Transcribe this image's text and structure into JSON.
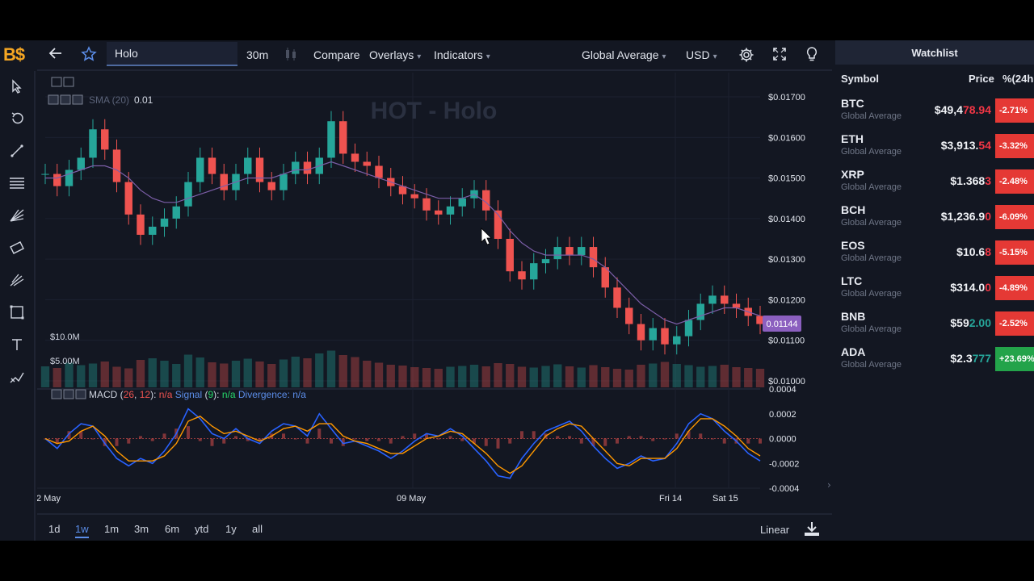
{
  "app": {
    "logo": "B$"
  },
  "topbar": {
    "symbol_value": "Holo",
    "interval": "30m",
    "compare": "Compare",
    "overlays": "Overlays",
    "indicators": "Indicators",
    "source": "Global Average",
    "currency": "USD"
  },
  "chart": {
    "watermark": "HOT - Holo",
    "sma_label": "SMA (20)",
    "sma_value": "0.01",
    "current_price": "0.01144",
    "volume_labels": [
      "$10.0M",
      "$5.00M"
    ],
    "macd": {
      "name": "MACD",
      "p1": "26",
      "p2": "12",
      "v1": "n/a",
      "signal": "Signal",
      "sp": "9",
      "sv": "n/a",
      "divergence": "Divergence: n/a"
    }
  },
  "chart_data": {
    "type": "line",
    "title": "HOT - Holo",
    "xlabel": "",
    "ylabel": "",
    "x_ticks": [
      "2 May",
      "09 May",
      "Fri 14",
      "Sat 15"
    ],
    "y_ticks": [
      "$0.01700",
      "$0.01600",
      "$0.01500",
      "$0.01400",
      "$0.01300",
      "$0.01200",
      "$0.01100",
      "$0.01000"
    ],
    "ylim": [
      0.0098,
      0.0172
    ],
    "macd_ticks": [
      "0.0004",
      "0.0002",
      "0.0000",
      "-0.0002",
      "-0.0004"
    ],
    "macd_ylim": [
      -0.0004,
      0.0004
    ],
    "series": [
      {
        "values": [
          0.0151,
          0.0148,
          0.0152,
          0.0155,
          0.0162,
          0.0157,
          0.0149,
          0.0141,
          0.0136,
          0.0138,
          0.014,
          0.0143,
          0.0149,
          0.0155,
          0.0151,
          0.0147,
          0.0151,
          0.0155,
          0.0149,
          0.0147,
          0.0151,
          0.0154,
          0.0151,
          0.0155,
          0.0164,
          0.0156,
          0.0154,
          0.0153,
          0.015,
          0.0148,
          0.0146,
          0.0145,
          0.0142,
          0.0141,
          0.0143,
          0.0145,
          0.0147,
          0.0142,
          0.0135,
          0.0127,
          0.0125,
          0.0129,
          0.013,
          0.0133,
          0.0131,
          0.0133,
          0.0128,
          0.0123,
          0.0118,
          0.0114,
          0.011,
          0.0113,
          0.0109,
          0.0111,
          0.0115,
          0.0119,
          0.0121,
          0.0119,
          0.0118,
          0.0116,
          0.0114
        ]
      },
      {
        "name": "SMA (20)",
        "values": [
          0.015,
          0.015,
          0.0151,
          0.0152,
          0.0153,
          0.0153,
          0.0152,
          0.015,
          0.0147,
          0.0145,
          0.0144,
          0.0144,
          0.0145,
          0.0146,
          0.0147,
          0.0148,
          0.0149,
          0.015,
          0.015,
          0.015,
          0.0151,
          0.0152,
          0.0152,
          0.0153,
          0.0154,
          0.0153,
          0.0152,
          0.0151,
          0.015,
          0.0149,
          0.0148,
          0.0147,
          0.0146,
          0.0145,
          0.0145,
          0.0145,
          0.0146,
          0.0144,
          0.0141,
          0.0137,
          0.0134,
          0.0132,
          0.0131,
          0.0131,
          0.0131,
          0.0131,
          0.013,
          0.0128,
          0.0125,
          0.0122,
          0.0119,
          0.0117,
          0.0115,
          0.0114,
          0.0115,
          0.0116,
          0.0117,
          0.0118,
          0.0118,
          0.0117,
          0.0116
        ]
      }
    ],
    "macd_series": [
      {
        "values": [
          0.0,
          -8e-05,
          4e-05,
          0.00012,
          0.0001,
          -4e-05,
          -0.00016,
          -0.00022,
          -0.00016,
          -0.0002,
          -0.0001,
          4e-05,
          0.00024,
          0.00016,
          4e-05,
          0.0,
          8e-05,
          0.0,
          -4e-05,
          6e-05,
          0.00012,
          0.0001,
          2e-05,
          0.0002,
          8e-05,
          -4e-05,
          -2e-05,
          -6e-05,
          -0.0001,
          -0.00016,
          -0.0001,
          -2e-05,
          4e-05,
          2e-05,
          8e-05,
          2e-05,
          -8e-05,
          -0.00018,
          -0.0003,
          -0.00032,
          -0.00016,
          -4e-05,
          6e-05,
          0.0001,
          0.00014,
          6e-05,
          -6e-05,
          -0.00016,
          -0.00024,
          -0.0002,
          -0.00014,
          -0.00018,
          -0.00016,
          -4e-05,
          0.00012,
          0.0002,
          0.00016,
          6e-05,
          -2e-05,
          -0.00012,
          -0.00018
        ]
      },
      {
        "values": [
          0.0,
          -4e-05,
          -2e-05,
          6e-05,
          0.0001,
          2e-05,
          -0.0001,
          -0.00018,
          -0.00018,
          -0.00018,
          -0.00014,
          -4e-05,
          0.00014,
          0.00018,
          0.0001,
          4e-05,
          6e-05,
          2e-05,
          -2e-05,
          2e-05,
          8e-05,
          0.0001,
          6e-05,
          0.00012,
          0.00012,
          2e-05,
          -2e-05,
          -4e-05,
          -8e-05,
          -0.00012,
          -0.00012,
          -6e-05,
          0.0,
          2e-05,
          6e-05,
          4e-05,
          -4e-05,
          -0.00012,
          -0.00022,
          -0.00028,
          -0.00022,
          -0.0001,
          2e-05,
          8e-05,
          0.00012,
          0.0001,
          0.0,
          -0.0001,
          -0.0002,
          -0.00022,
          -0.00016,
          -0.00016,
          -0.00016,
          -8e-05,
          6e-05,
          0.00016,
          0.00016,
          0.0001,
          2e-05,
          -8e-05,
          -0.00014
        ]
      }
    ],
    "volume": [
      5.2,
      4.8,
      6.1,
      5.5,
      5.9,
      6.4,
      5.1,
      4.7,
      6.8,
      7.2,
      6.6,
      5.8,
      8.1,
      7.4,
      6.2,
      5.9,
      6.6,
      7.1,
      6.4,
      5.8,
      6.9,
      7.6,
      7.2,
      8.4,
      9.1,
      8.0,
      7.5,
      6.6,
      6.1,
      5.6,
      5.4,
      5.0,
      4.8,
      4.6,
      5.1,
      5.3,
      5.6,
      5.2,
      6.0,
      5.8,
      5.1,
      4.9,
      5.3,
      5.7,
      5.2,
      4.9,
      5.5,
      5.0,
      4.6,
      4.4,
      5.6,
      5.9,
      6.3,
      5.8,
      5.5,
      5.1,
      5.3,
      5.6,
      5.0,
      4.8,
      4.6
    ]
  },
  "bottombar": {
    "ranges": [
      "1d",
      "1w",
      "1m",
      "3m",
      "6m",
      "ytd",
      "1y",
      "all"
    ],
    "active_range": "1w",
    "scale": "Linear"
  },
  "watchlist": {
    "title": "Watchlist",
    "headers": {
      "symbol": "Symbol",
      "price": "Price",
      "change": "%(24h"
    },
    "rows": [
      {
        "symbol": "BTC",
        "source": "Global Average",
        "price_a": "$49,4",
        "price_b": "78.94",
        "change": "-2.71%",
        "dir": "neg"
      },
      {
        "symbol": "ETH",
        "source": "Global Average",
        "price_a": "$3,913.",
        "price_b": "54",
        "change": "-3.32%",
        "dir": "neg"
      },
      {
        "symbol": "XRP",
        "source": "Global Average",
        "price_a": "$1.368",
        "price_b": "3",
        "change": "-2.48%",
        "dir": "neg"
      },
      {
        "symbol": "BCH",
        "source": "Global Average",
        "price_a": "$1,236.9",
        "price_b": "0",
        "change": "-6.09%",
        "dir": "neg"
      },
      {
        "symbol": "EOS",
        "source": "Global Average",
        "price_a": "$10.6",
        "price_b": "8",
        "change": "-5.15%",
        "dir": "neg"
      },
      {
        "symbol": "LTC",
        "source": "Global Average",
        "price_a": "$314.0",
        "price_b": "0",
        "change": "-4.89%",
        "dir": "neg"
      },
      {
        "symbol": "BNB",
        "source": "Global Average",
        "price_a": "$59",
        "price_b": "2.00",
        "change": "-2.52%",
        "dir": "neg_green"
      },
      {
        "symbol": "ADA",
        "source": "Global Average",
        "price_a": "$2.3",
        "price_b": "777",
        "change": "+23.69%",
        "dir": "pos"
      }
    ]
  },
  "colors": {
    "background": "#131722",
    "candle_up": "#26a69a",
    "candle_down": "#ef5350",
    "sma": "#7b5ea7",
    "macd": "#2962ff",
    "signal": "#ff9800",
    "accent": "#5b8de8",
    "logo": "#f5a623"
  }
}
